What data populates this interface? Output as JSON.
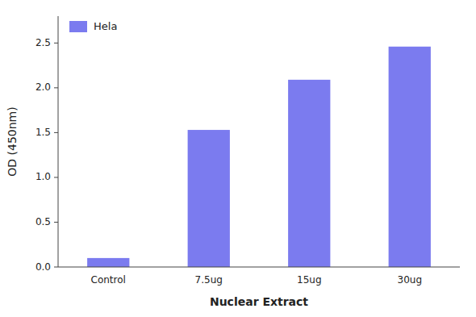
{
  "chart_data": {
    "type": "bar",
    "categories": [
      "Control",
      "7.5ug",
      "15ug",
      "30ug"
    ],
    "series": [
      {
        "name": "Hela",
        "color": "#7b7bef",
        "values": [
          0.1,
          1.53,
          2.09,
          2.46
        ]
      }
    ],
    "xlabel": "Nuclear Extract",
    "ylabel": "OD (450nm)",
    "ylim": [
      0,
      2.8
    ],
    "yticks": [
      {
        "value": 0,
        "label": "0.0"
      },
      0.5,
      {
        "value": 1,
        "label": "1.0"
      },
      1.5,
      {
        "value": 2,
        "label": "2.0"
      },
      2.5
    ],
    "grid": false,
    "legend": "upper left"
  }
}
